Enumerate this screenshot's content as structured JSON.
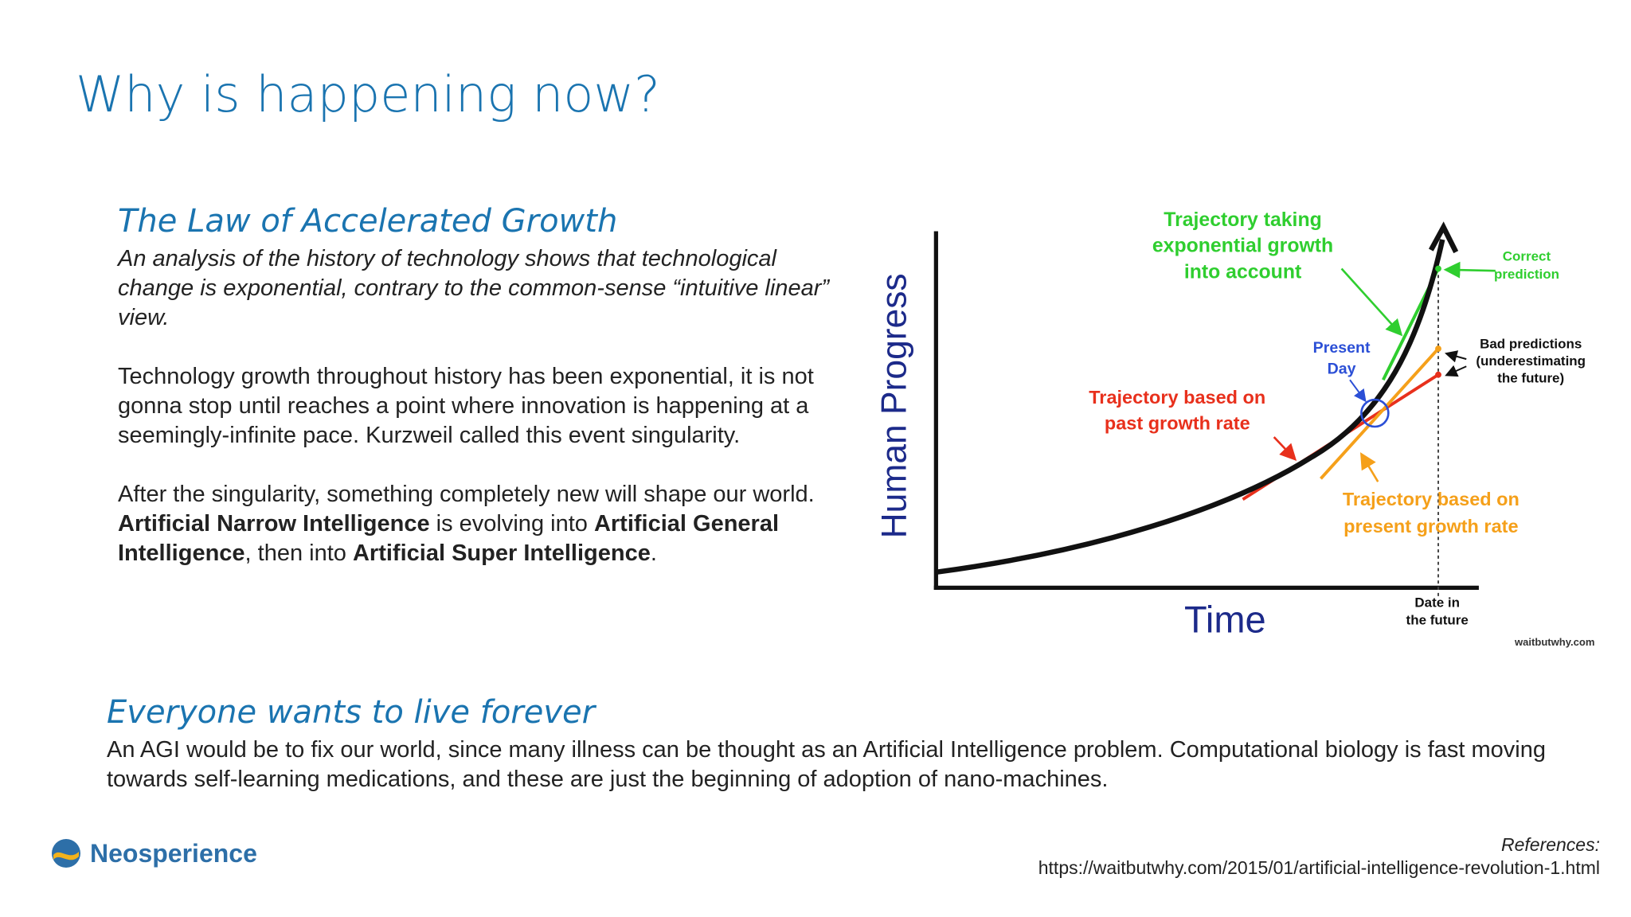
{
  "title": "Why is happening now?",
  "sections": [
    {
      "heading": "The Law of Accelerated Growth",
      "paragraphs": [
        [
          {
            "text": "An analysis of the history of technology shows that technological change is exponential, contrary to the common-sense “intuitive linear” view.",
            "italic": true
          }
        ],
        [
          {
            "text": "Technology growth throughout history has been exponential, it is not gonna stop until reaches a point where innovation is happening at a seemingly-infinite pace. Kurzweil called this event singularity."
          }
        ],
        [
          {
            "text": "After the singularity, something completely new will shape our world."
          }
        ],
        [
          {
            "text": "Artificial Narrow Intelligence",
            "bold": true
          },
          {
            "text": " is evolving into "
          },
          {
            "text": "Artificial General Intelligence",
            "bold": true
          },
          {
            "text": ", then into "
          },
          {
            "text": "Artificial Super Intelligence",
            "bold": true
          },
          {
            "text": "."
          }
        ]
      ]
    },
    {
      "heading": "Everyone wants to live forever",
      "paragraphs": [
        [
          {
            "text": "An AGI would be to fix our world, since many illness can be thought as an Artificial Intelligence problem. Computational biology is fast moving towards self-learning medications, and these are just the beginning of adoption of nano-machines."
          }
        ]
      ]
    }
  ],
  "diagram": {
    "y_axis_label": "Human Progress",
    "x_axis_label": "Time",
    "exponential_label": [
      "Trajectory taking",
      "exponential growth",
      "into account"
    ],
    "correct_label": [
      "Correct",
      "prediction"
    ],
    "bad_label": [
      "Bad predictions",
      "(underestimating",
      "the future)"
    ],
    "present_label": [
      "Present",
      "Day"
    ],
    "past_label": [
      "Trajectory based on",
      "past growth rate"
    ],
    "present_rate_label": [
      "Trajectory based on",
      "present growth rate"
    ],
    "future_label": [
      "Date in",
      "the future"
    ],
    "source": "waitbutwhy.com"
  },
  "logo": "Neosperience",
  "references": {
    "label": "References:",
    "url": "https://waitbutwhy.com/2015/01/artificial-intelligence-revolution-1.html"
  }
}
